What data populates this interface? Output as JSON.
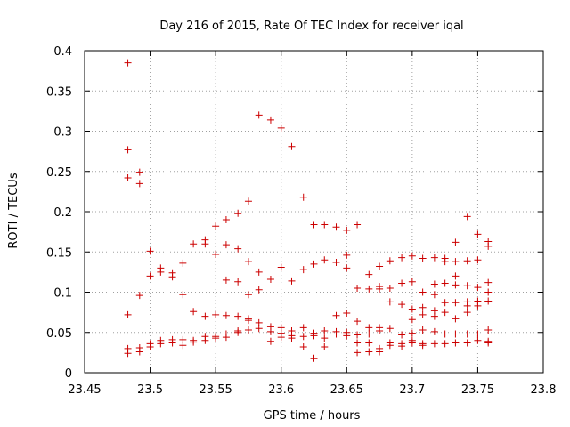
{
  "chart_data": {
    "type": "scatter",
    "title": "Day 216 of 2015, Rate Of TEC Index for receiver iqal",
    "xlabel": "GPS time / hours",
    "ylabel": "ROTI / TECUs",
    "xlim": [
      23.45,
      23.8
    ],
    "ylim": [
      0,
      0.4
    ],
    "x_ticks": [
      "23.45",
      "23.5",
      "23.55",
      "23.6",
      "23.65",
      "23.7",
      "23.75",
      "23.8"
    ],
    "y_ticks": [
      "0",
      "0.05",
      "0.1",
      "0.15",
      "0.2",
      "0.25",
      "0.3",
      "0.35",
      "0.4"
    ],
    "grid": true,
    "marker": "+",
    "color": "#cc0000",
    "points": [
      [
        23.483,
        0.385
      ],
      [
        23.483,
        0.277
      ],
      [
        23.483,
        0.242
      ],
      [
        23.483,
        0.072
      ],
      [
        23.483,
        0.03
      ],
      [
        23.483,
        0.024
      ],
      [
        23.492,
        0.249
      ],
      [
        23.492,
        0.235
      ],
      [
        23.492,
        0.096
      ],
      [
        23.492,
        0.031
      ],
      [
        23.492,
        0.026
      ],
      [
        23.5,
        0.151
      ],
      [
        23.5,
        0.12
      ],
      [
        23.5,
        0.036
      ],
      [
        23.5,
        0.032
      ],
      [
        23.508,
        0.13
      ],
      [
        23.508,
        0.125
      ],
      [
        23.508,
        0.04
      ],
      [
        23.508,
        0.036
      ],
      [
        23.517,
        0.124
      ],
      [
        23.517,
        0.119
      ],
      [
        23.517,
        0.041
      ],
      [
        23.517,
        0.037
      ],
      [
        23.525,
        0.136
      ],
      [
        23.525,
        0.097
      ],
      [
        23.525,
        0.041
      ],
      [
        23.525,
        0.034
      ],
      [
        23.533,
        0.16
      ],
      [
        23.533,
        0.076
      ],
      [
        23.533,
        0.04
      ],
      [
        23.533,
        0.038
      ],
      [
        23.542,
        0.165
      ],
      [
        23.542,
        0.16
      ],
      [
        23.542,
        0.07
      ],
      [
        23.542,
        0.045
      ],
      [
        23.542,
        0.04
      ],
      [
        23.55,
        0.182
      ],
      [
        23.55,
        0.147
      ],
      [
        23.55,
        0.072
      ],
      [
        23.55,
        0.045
      ],
      [
        23.55,
        0.043
      ],
      [
        23.558,
        0.19
      ],
      [
        23.558,
        0.159
      ],
      [
        23.558,
        0.115
      ],
      [
        23.558,
        0.071
      ],
      [
        23.558,
        0.048
      ],
      [
        23.558,
        0.044
      ],
      [
        23.567,
        0.198
      ],
      [
        23.567,
        0.154
      ],
      [
        23.567,
        0.113
      ],
      [
        23.567,
        0.07
      ],
      [
        23.567,
        0.052
      ],
      [
        23.567,
        0.05
      ],
      [
        23.575,
        0.213
      ],
      [
        23.575,
        0.138
      ],
      [
        23.575,
        0.097
      ],
      [
        23.575,
        0.067
      ],
      [
        23.575,
        0.065
      ],
      [
        23.575,
        0.053
      ],
      [
        23.583,
        0.32
      ],
      [
        23.583,
        0.125
      ],
      [
        23.583,
        0.103
      ],
      [
        23.583,
        0.062
      ],
      [
        23.583,
        0.055
      ],
      [
        23.592,
        0.314
      ],
      [
        23.592,
        0.116
      ],
      [
        23.592,
        0.057
      ],
      [
        23.592,
        0.051
      ],
      [
        23.592,
        0.039
      ],
      [
        23.6,
        0.304
      ],
      [
        23.6,
        0.131
      ],
      [
        23.6,
        0.056
      ],
      [
        23.6,
        0.049
      ],
      [
        23.6,
        0.044
      ],
      [
        23.608,
        0.281
      ],
      [
        23.608,
        0.114
      ],
      [
        23.608,
        0.052
      ],
      [
        23.608,
        0.046
      ],
      [
        23.608,
        0.043
      ],
      [
        23.617,
        0.218
      ],
      [
        23.617,
        0.128
      ],
      [
        23.617,
        0.056
      ],
      [
        23.617,
        0.045
      ],
      [
        23.617,
        0.032
      ],
      [
        23.625,
        0.184
      ],
      [
        23.625,
        0.135
      ],
      [
        23.625,
        0.049
      ],
      [
        23.625,
        0.046
      ],
      [
        23.625,
        0.018
      ],
      [
        23.633,
        0.184
      ],
      [
        23.633,
        0.14
      ],
      [
        23.633,
        0.052
      ],
      [
        23.633,
        0.043
      ],
      [
        23.633,
        0.032
      ],
      [
        23.642,
        0.181
      ],
      [
        23.642,
        0.137
      ],
      [
        23.642,
        0.071
      ],
      [
        23.642,
        0.051
      ],
      [
        23.642,
        0.048
      ],
      [
        23.65,
        0.177
      ],
      [
        23.65,
        0.146
      ],
      [
        23.65,
        0.13
      ],
      [
        23.65,
        0.074
      ],
      [
        23.65,
        0.05
      ],
      [
        23.65,
        0.046
      ],
      [
        23.658,
        0.184
      ],
      [
        23.658,
        0.105
      ],
      [
        23.658,
        0.064
      ],
      [
        23.658,
        0.047
      ],
      [
        23.658,
        0.037
      ],
      [
        23.658,
        0.025
      ],
      [
        23.667,
        0.122
      ],
      [
        23.667,
        0.104
      ],
      [
        23.667,
        0.056
      ],
      [
        23.667,
        0.048
      ],
      [
        23.667,
        0.037
      ],
      [
        23.667,
        0.026
      ],
      [
        23.675,
        0.132
      ],
      [
        23.675,
        0.107
      ],
      [
        23.675,
        0.104
      ],
      [
        23.675,
        0.056
      ],
      [
        23.675,
        0.052
      ],
      [
        23.675,
        0.03
      ],
      [
        23.675,
        0.026
      ],
      [
        23.683,
        0.139
      ],
      [
        23.683,
        0.105
      ],
      [
        23.683,
        0.088
      ],
      [
        23.683,
        0.055
      ],
      [
        23.683,
        0.037
      ],
      [
        23.683,
        0.034
      ],
      [
        23.692,
        0.143
      ],
      [
        23.692,
        0.111
      ],
      [
        23.692,
        0.085
      ],
      [
        23.692,
        0.047
      ],
      [
        23.692,
        0.036
      ],
      [
        23.692,
        0.033
      ],
      [
        23.7,
        0.145
      ],
      [
        23.7,
        0.113
      ],
      [
        23.7,
        0.079
      ],
      [
        23.7,
        0.066
      ],
      [
        23.7,
        0.049
      ],
      [
        23.7,
        0.04
      ],
      [
        23.7,
        0.037
      ],
      [
        23.708,
        0.142
      ],
      [
        23.708,
        0.1
      ],
      [
        23.708,
        0.081
      ],
      [
        23.708,
        0.072
      ],
      [
        23.708,
        0.053
      ],
      [
        23.708,
        0.036
      ],
      [
        23.708,
        0.034
      ],
      [
        23.717,
        0.143
      ],
      [
        23.717,
        0.11
      ],
      [
        23.717,
        0.097
      ],
      [
        23.717,
        0.077
      ],
      [
        23.717,
        0.07
      ],
      [
        23.717,
        0.051
      ],
      [
        23.717,
        0.036
      ],
      [
        23.725,
        0.142
      ],
      [
        23.725,
        0.138
      ],
      [
        23.725,
        0.111
      ],
      [
        23.725,
        0.087
      ],
      [
        23.725,
        0.075
      ],
      [
        23.725,
        0.048
      ],
      [
        23.725,
        0.036
      ],
      [
        23.733,
        0.162
      ],
      [
        23.733,
        0.138
      ],
      [
        23.733,
        0.12
      ],
      [
        23.733,
        0.109
      ],
      [
        23.733,
        0.087
      ],
      [
        23.733,
        0.067
      ],
      [
        23.733,
        0.048
      ],
      [
        23.733,
        0.037
      ],
      [
        23.742,
        0.194
      ],
      [
        23.742,
        0.139
      ],
      [
        23.742,
        0.108
      ],
      [
        23.742,
        0.088
      ],
      [
        23.742,
        0.083
      ],
      [
        23.742,
        0.075
      ],
      [
        23.742,
        0.048
      ],
      [
        23.742,
        0.037
      ],
      [
        23.75,
        0.172
      ],
      [
        23.75,
        0.14
      ],
      [
        23.75,
        0.106
      ],
      [
        23.75,
        0.089
      ],
      [
        23.75,
        0.083
      ],
      [
        23.75,
        0.048
      ],
      [
        23.75,
        0.04
      ],
      [
        23.758,
        0.163
      ],
      [
        23.758,
        0.157
      ],
      [
        23.758,
        0.112
      ],
      [
        23.758,
        0.1
      ],
      [
        23.758,
        0.089
      ],
      [
        23.758,
        0.053
      ],
      [
        23.758,
        0.039
      ],
      [
        23.758,
        0.037
      ]
    ]
  }
}
